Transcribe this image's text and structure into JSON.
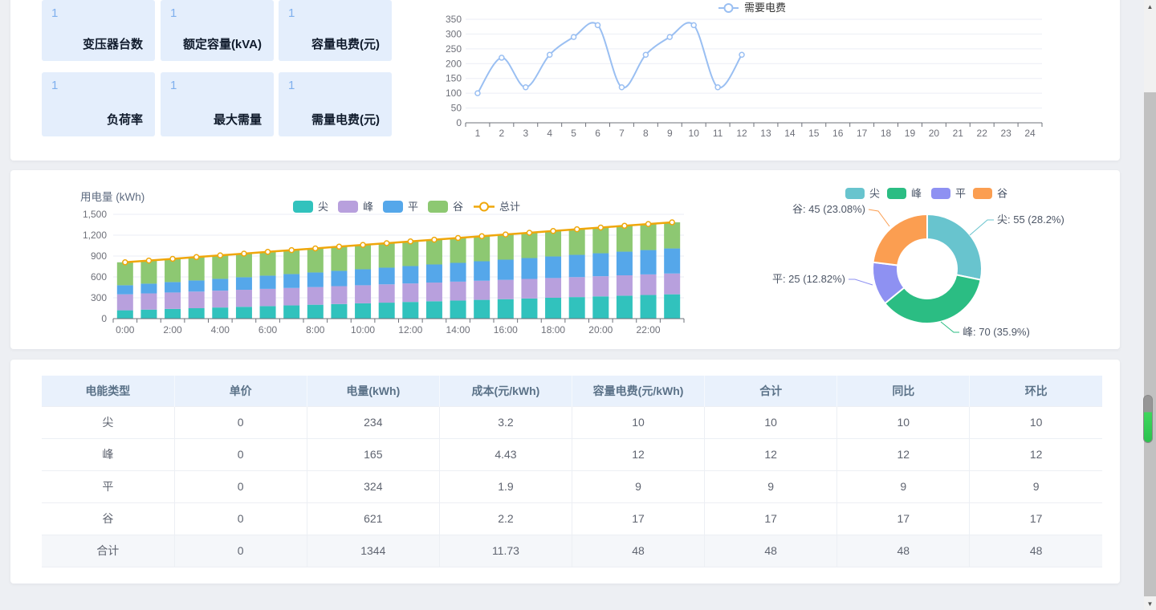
{
  "page": {
    "background": "#edeff3"
  },
  "stat_cards": [
    {
      "value": "1",
      "label": "变压器台数"
    },
    {
      "value": "1",
      "label": "额定容量(kVA)"
    },
    {
      "value": "1",
      "label": "容量电费(元)"
    },
    {
      "value": "1",
      "label": "负荷率"
    },
    {
      "value": "1",
      "label": "最大需量"
    },
    {
      "value": "1",
      "label": "需量电费(元)"
    }
  ],
  "chart_data": [
    {
      "id": "demand-fee-line",
      "type": "line",
      "title": "",
      "legend": [
        "需要电费"
      ],
      "legend_position": "top-center",
      "grid": true,
      "x_categories": [
        "1",
        "2",
        "3",
        "4",
        "5",
        "6",
        "7",
        "8",
        "9",
        "10",
        "11",
        "12",
        "13",
        "14",
        "15",
        "16",
        "17",
        "18",
        "19",
        "20",
        "21",
        "22",
        "23",
        "24"
      ],
      "ylim": [
        0,
        350
      ],
      "ytick_step": 50,
      "series": [
        {
          "name": "需要电费",
          "color": "#9abff2",
          "marker": "circle",
          "smooth": true,
          "values": [
            100,
            220,
            120,
            230,
            290,
            330,
            120,
            230,
            290,
            330,
            120,
            230
          ]
        }
      ]
    },
    {
      "id": "usage-stacked-bar",
      "type": "bar",
      "stacked": true,
      "title": "用电量 (kWh)",
      "legend_position": "top-right",
      "grid": true,
      "x_categories": [
        "0:00",
        "1:00",
        "2:00",
        "3:00",
        "4:00",
        "5:00",
        "6:00",
        "7:00",
        "8:00",
        "9:00",
        "10:00",
        "11:00",
        "12:00",
        "13:00",
        "14:00",
        "15:00",
        "16:00",
        "17:00",
        "18:00",
        "19:00",
        "20:00",
        "21:00",
        "22:00",
        "23:00"
      ],
      "x_label_interval": 2,
      "ylim": [
        0,
        1500
      ],
      "ytick_step": 300,
      "series": [
        {
          "name": "尖",
          "color": "#31c2bd",
          "values": [
            120,
            130,
            140,
            150,
            160,
            170,
            180,
            190,
            200,
            210,
            220,
            230,
            240,
            250,
            260,
            270,
            280,
            290,
            300,
            310,
            320,
            330,
            340,
            350
          ]
        },
        {
          "name": "峰",
          "color": "#b8a0dd",
          "values": [
            230,
            233,
            236,
            239,
            242,
            245,
            248,
            251,
            254,
            257,
            260,
            263,
            266,
            269,
            272,
            275,
            278,
            281,
            284,
            287,
            290,
            293,
            296,
            299
          ]
        },
        {
          "name": "平",
          "color": "#55a7ea",
          "values": [
            130,
            140,
            150,
            160,
            170,
            180,
            190,
            200,
            210,
            220,
            230,
            240,
            250,
            260,
            270,
            280,
            290,
            300,
            310,
            320,
            330,
            340,
            350,
            360
          ]
        },
        {
          "name": "谷",
          "color": "#8dc872",
          "values": [
            330,
            332,
            334,
            336,
            338,
            340,
            342,
            344,
            346,
            348,
            350,
            352,
            354,
            356,
            358,
            360,
            362,
            364,
            366,
            368,
            370,
            372,
            374,
            376
          ]
        }
      ],
      "line_series": {
        "name": "总计",
        "color": "#efa70b",
        "marker": "circle",
        "values": [
          810,
          835,
          860,
          885,
          910,
          935,
          960,
          985,
          1010,
          1035,
          1060,
          1085,
          1110,
          1135,
          1160,
          1185,
          1210,
          1235,
          1260,
          1285,
          1310,
          1335,
          1360,
          1385
        ]
      }
    },
    {
      "id": "energy-share-donut",
      "type": "donut",
      "legend": [
        "尖",
        "峰",
        "平",
        "谷"
      ],
      "legend_position": "top-center",
      "slices": [
        {
          "name": "尖",
          "value": 55,
          "pct": "28.2%",
          "label": "尖: 55 (28.2%)",
          "color": "#68c4ce"
        },
        {
          "name": "峰",
          "value": 70,
          "pct": "35.9%",
          "label": "峰: 70 (35.9%)",
          "color": "#2bbd83"
        },
        {
          "name": "平",
          "value": 25,
          "pct": "12.82%",
          "label": "平: 25 (12.82%)",
          "color": "#8e91f2"
        },
        {
          "name": "谷",
          "value": 45,
          "pct": "23.08%",
          "label": "谷: 45 (23.08%)",
          "color": "#fb9e51"
        }
      ]
    }
  ],
  "table": {
    "headers": [
      "电能类型",
      "单价",
      "电量(kWh)",
      "成本(元/kWh)",
      "容量电费(元/kWh)",
      "合计",
      "同比",
      "环比"
    ],
    "rows": [
      [
        "尖",
        "0",
        "234",
        "3.2",
        "10",
        "10",
        "10",
        "10"
      ],
      [
        "峰",
        "0",
        "165",
        "4.43",
        "12",
        "12",
        "12",
        "12"
      ],
      [
        "平",
        "0",
        "324",
        "1.9",
        "9",
        "9",
        "9",
        "9"
      ],
      [
        "谷",
        "0",
        "621",
        "2.2",
        "17",
        "17",
        "17",
        "17"
      ],
      [
        "合计",
        "0",
        "1344",
        "11.73",
        "48",
        "48",
        "48",
        "48"
      ]
    ],
    "total_row_label": "合计"
  },
  "scrollbar": {
    "up_arrow": "▲",
    "down_arrow": "▼"
  }
}
